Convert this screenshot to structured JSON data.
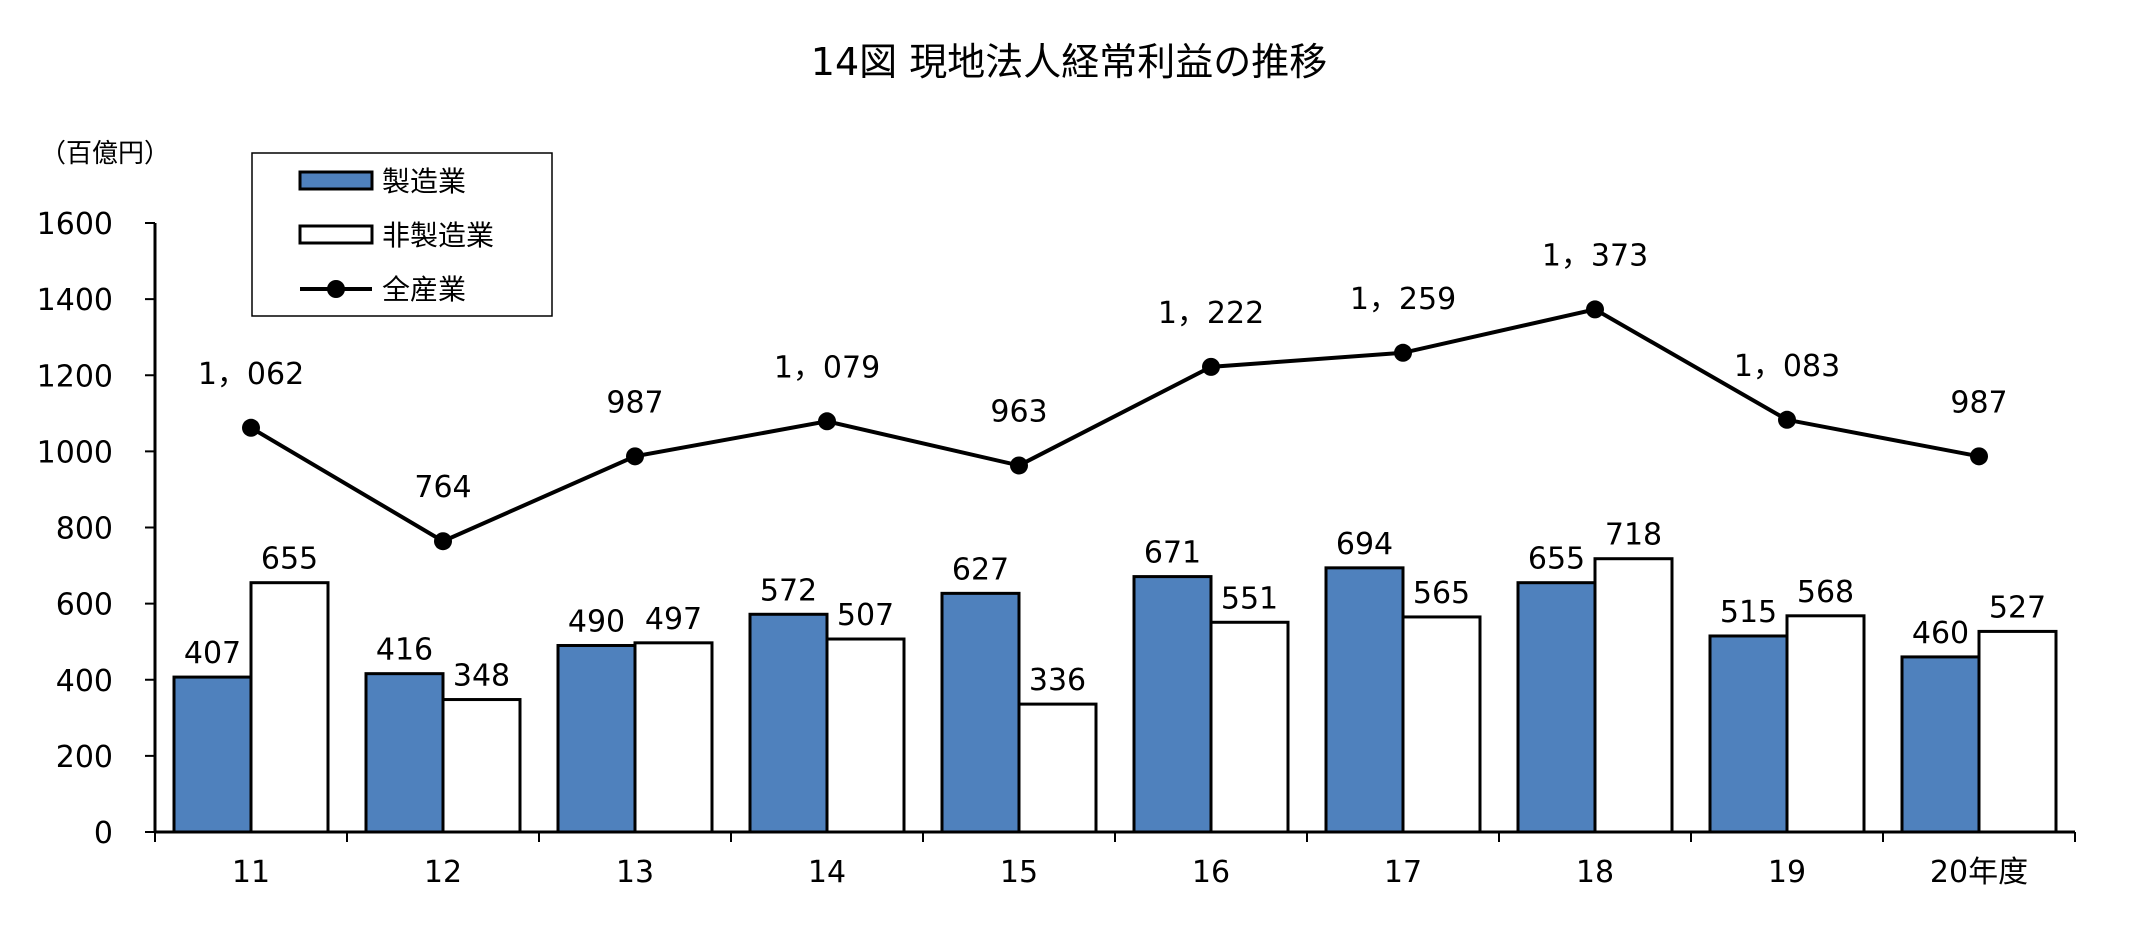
{
  "chart_data": {
    "type": "bar",
    "title": "14図 現地法人経常利益の推移",
    "unit_label": "（百億円）",
    "xlabel": "",
    "ylabel": "",
    "ylim": [
      0,
      1600
    ],
    "yticks": [
      "0",
      "200",
      "400",
      "600",
      "800",
      "1000",
      "1200",
      "1400",
      "1600"
    ],
    "categories": [
      "11",
      "12",
      "13",
      "14",
      "15",
      "16",
      "17",
      "18",
      "19",
      "20年度"
    ],
    "series": [
      {
        "name": "製造業",
        "kind": "bar",
        "color": "#4f81bd",
        "values": [
          407,
          416,
          490,
          572,
          627,
          671,
          694,
          655,
          515,
          460
        ],
        "labels": [
          "407",
          "416",
          "490",
          "572",
          "627",
          "671",
          "694",
          "655",
          "515",
          "460"
        ]
      },
      {
        "name": "非製造業",
        "kind": "bar",
        "color": "#ffffff",
        "values": [
          655,
          348,
          497,
          507,
          336,
          551,
          565,
          718,
          568,
          527
        ],
        "labels": [
          "655",
          "348",
          "497",
          "507",
          "336",
          "551",
          "565",
          "718",
          "568",
          "527"
        ]
      },
      {
        "name": "全産業",
        "kind": "line",
        "color": "#000000",
        "values": [
          1062,
          764,
          987,
          1079,
          963,
          1222,
          1259,
          1373,
          1083,
          987
        ],
        "labels": [
          "1，062",
          "764",
          "987",
          "1，079",
          "963",
          "1，222",
          "1，259",
          "1，373",
          "1，083",
          "987"
        ]
      }
    ],
    "legend_position": "top-left",
    "grid": false
  }
}
